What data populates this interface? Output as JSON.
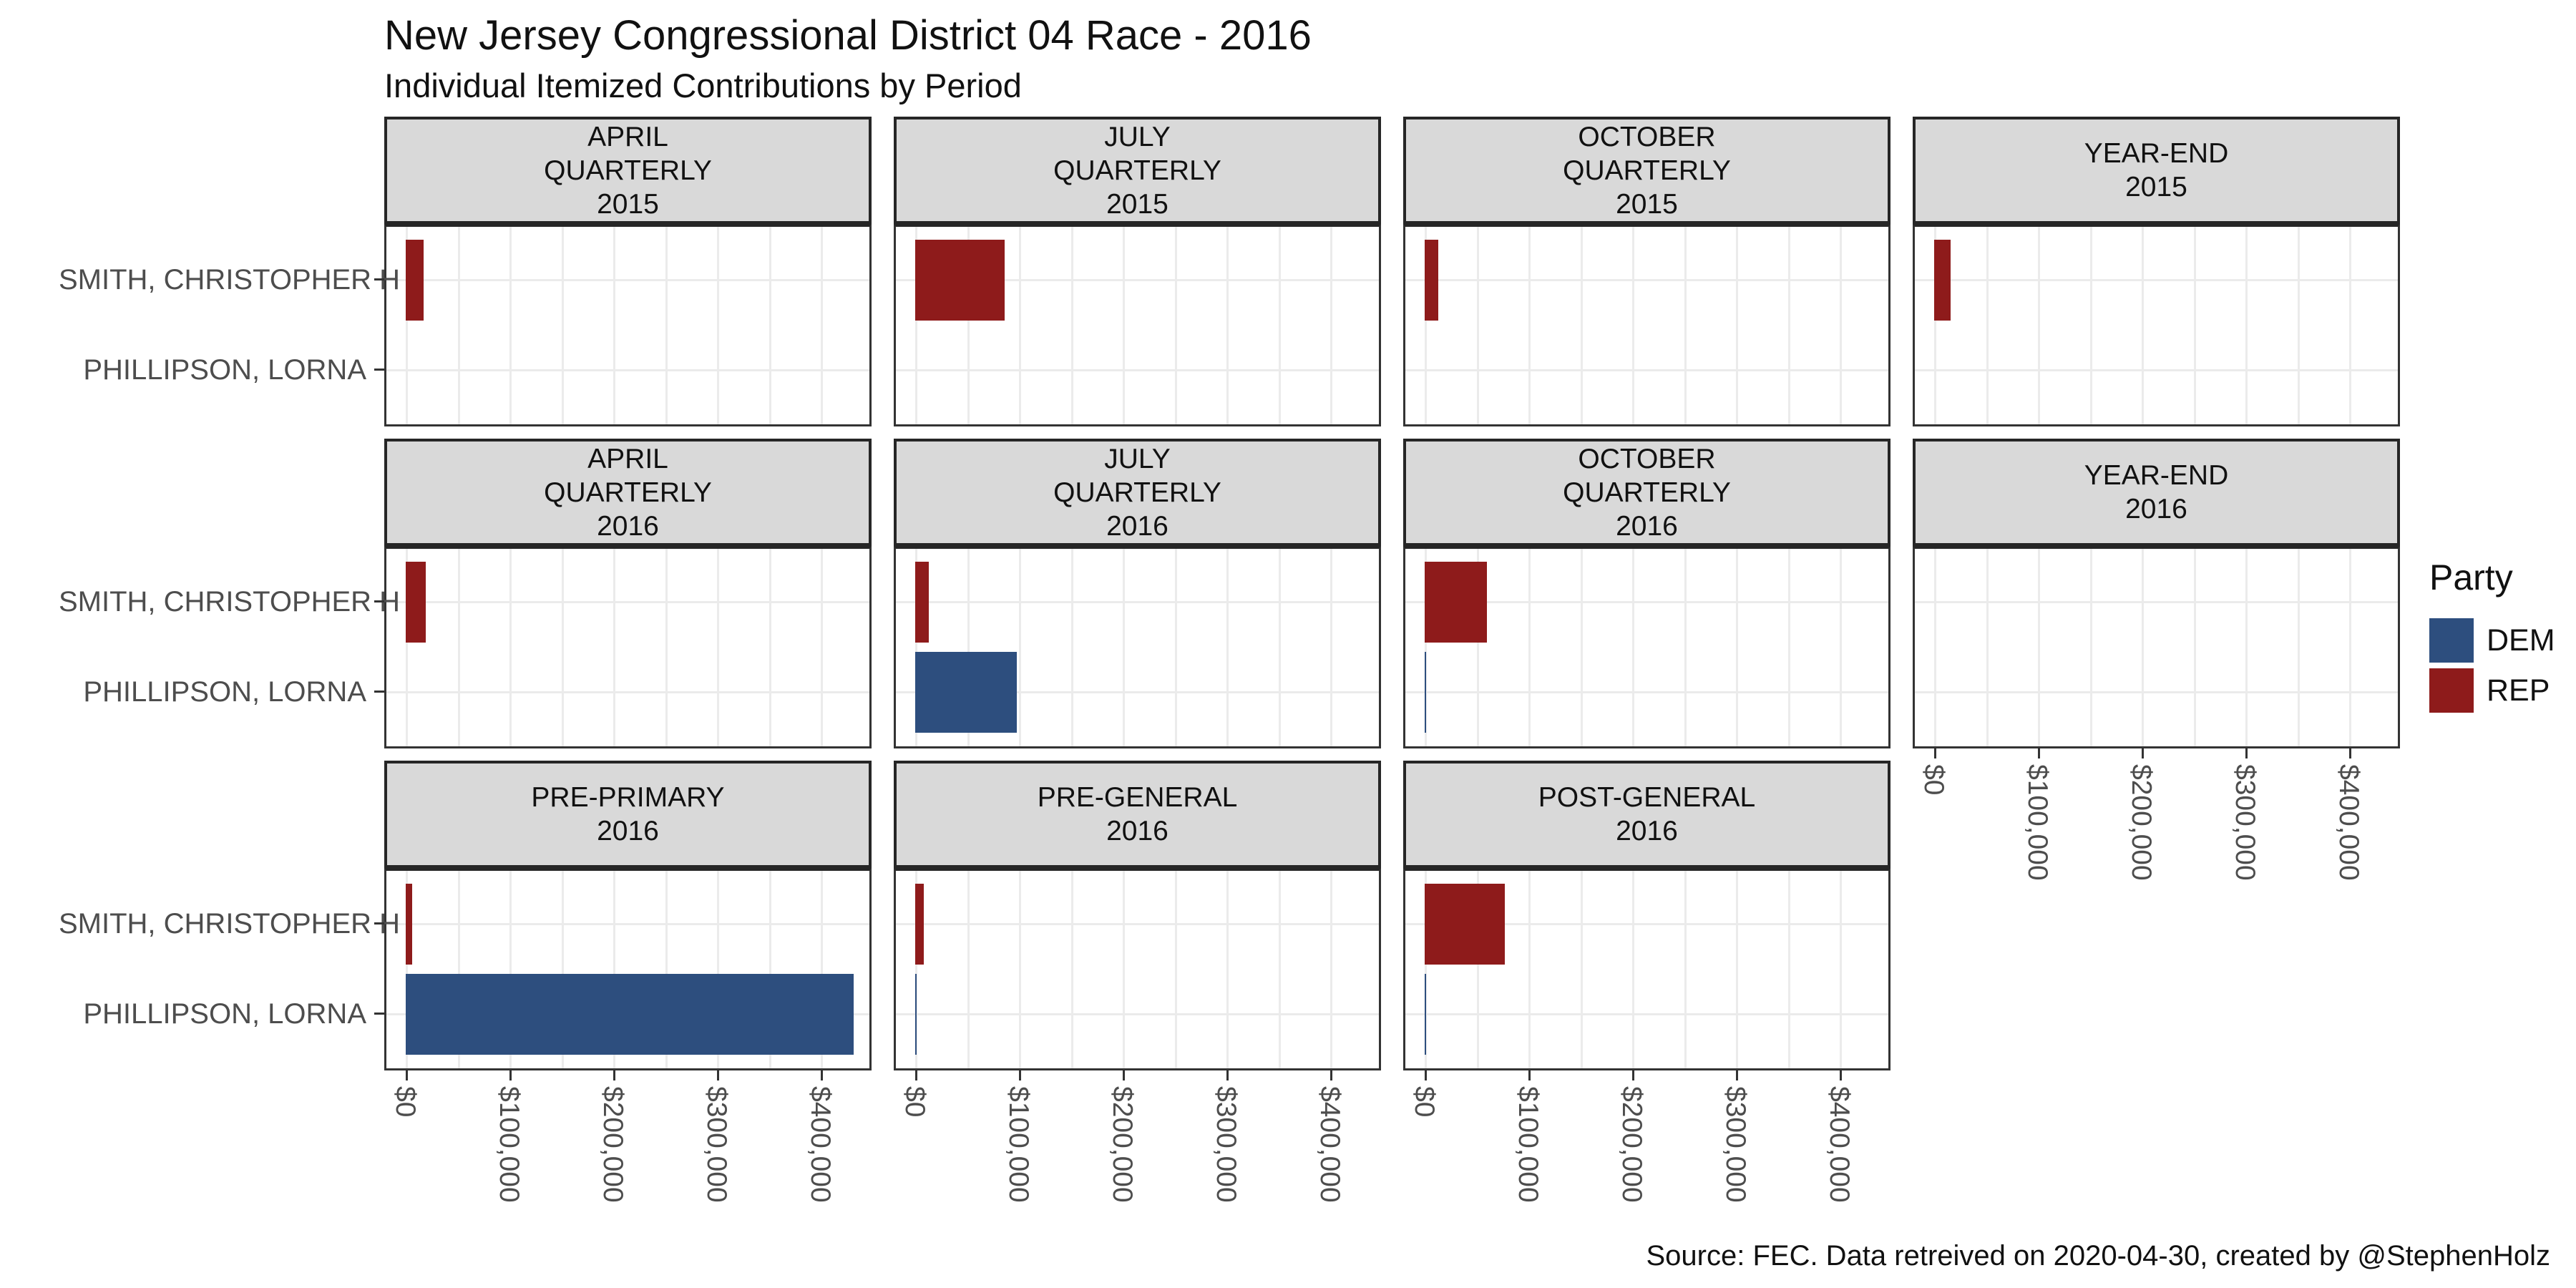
{
  "header": {
    "title": "New Jersey Congressional District 04 Race - 2016",
    "subtitle": "Individual Itemized Contributions by Period"
  },
  "caption": "Source: FEC. Data retreived on 2020-04-30, created by @StephenHolz",
  "chart_data": {
    "type": "bar",
    "orientation": "horizontal",
    "title": "New Jersey Congressional District 04 Race - 2016",
    "subtitle": "Individual Itemized Contributions by Period",
    "caption": "Source: FEC. Data retreived on 2020-04-30, created by @StephenHolz",
    "categories": [
      "SMITH, CHRISTOPHER H",
      "PHILLIPSON, LORNA"
    ],
    "category_parties": {
      "SMITH, CHRISTOPHER H": "REP",
      "PHILLIPSON, LORNA": "DEM"
    },
    "x_tick_labels": [
      "$0",
      "$100,000",
      "$200,000",
      "$300,000",
      "$400,000"
    ],
    "x_tick_values": [
      0,
      100000,
      200000,
      300000,
      400000
    ],
    "x_axis_range": [
      0,
      450000
    ],
    "grid": "light-gray major and minor gridlines on white panels",
    "legend": {
      "title": "Party",
      "position": "right",
      "entries": [
        {
          "label": "DEM",
          "color": "#2d4e7e"
        },
        {
          "label": "REP",
          "color": "#8e1b1b"
        }
      ]
    },
    "facet_grid": {
      "rows": 3,
      "cols": 4
    },
    "facets": [
      {
        "label_lines": [
          "APRIL",
          "QUARTERLY",
          "2015"
        ],
        "row": 0,
        "col": 0,
        "x_axis": false,
        "bars": [
          {
            "candidate": "SMITH, CHRISTOPHER H",
            "party": "REP",
            "value": 17000
          }
        ]
      },
      {
        "label_lines": [
          "JULY",
          "QUARTERLY",
          "2015"
        ],
        "row": 0,
        "col": 1,
        "x_axis": false,
        "bars": [
          {
            "candidate": "SMITH, CHRISTOPHER H",
            "party": "REP",
            "value": 86000
          }
        ]
      },
      {
        "label_lines": [
          "OCTOBER",
          "QUARTERLY",
          "2015"
        ],
        "row": 0,
        "col": 2,
        "x_axis": false,
        "bars": [
          {
            "candidate": "SMITH, CHRISTOPHER H",
            "party": "REP",
            "value": 13000
          }
        ]
      },
      {
        "label_lines": [
          "YEAR-END",
          "2015"
        ],
        "row": 0,
        "col": 3,
        "x_axis": false,
        "bars": [
          {
            "candidate": "SMITH, CHRISTOPHER H",
            "party": "REP",
            "value": 16000
          }
        ]
      },
      {
        "label_lines": [
          "APRIL",
          "QUARTERLY",
          "2016"
        ],
        "row": 1,
        "col": 0,
        "x_axis": false,
        "bars": [
          {
            "candidate": "SMITH, CHRISTOPHER H",
            "party": "REP",
            "value": 19000
          }
        ]
      },
      {
        "label_lines": [
          "JULY",
          "QUARTERLY",
          "2016"
        ],
        "row": 1,
        "col": 1,
        "x_axis": false,
        "bars": [
          {
            "candidate": "SMITH, CHRISTOPHER H",
            "party": "REP",
            "value": 13000
          },
          {
            "candidate": "PHILLIPSON, LORNA",
            "party": "DEM",
            "value": 98000
          }
        ]
      },
      {
        "label_lines": [
          "OCTOBER",
          "QUARTERLY",
          "2016"
        ],
        "row": 1,
        "col": 2,
        "x_axis": false,
        "bars": [
          {
            "candidate": "SMITH, CHRISTOPHER H",
            "party": "REP",
            "value": 60000
          },
          {
            "candidate": "PHILLIPSON, LORNA",
            "party": "DEM",
            "value": 1500
          }
        ]
      },
      {
        "label_lines": [
          "YEAR-END",
          "2016"
        ],
        "row": 1,
        "col": 3,
        "x_axis": true,
        "bars": []
      },
      {
        "label_lines": [
          "PRE-PRIMARY",
          "2016"
        ],
        "row": 2,
        "col": 0,
        "x_axis": true,
        "bars": [
          {
            "candidate": "SMITH, CHRISTOPHER H",
            "party": "REP",
            "value": 6000
          },
          {
            "candidate": "PHILLIPSON, LORNA",
            "party": "DEM",
            "value": 432000
          }
        ]
      },
      {
        "label_lines": [
          "PRE-GENERAL",
          "2016"
        ],
        "row": 2,
        "col": 1,
        "x_axis": true,
        "bars": [
          {
            "candidate": "SMITH, CHRISTOPHER H",
            "party": "REP",
            "value": 8000
          },
          {
            "candidate": "PHILLIPSON, LORNA",
            "party": "DEM",
            "value": 1000
          }
        ]
      },
      {
        "label_lines": [
          "POST-GENERAL",
          "2016"
        ],
        "row": 2,
        "col": 2,
        "x_axis": true,
        "bars": [
          {
            "candidate": "SMITH, CHRISTOPHER H",
            "party": "REP",
            "value": 77000
          },
          {
            "candidate": "PHILLIPSON, LORNA",
            "party": "DEM",
            "value": 1500
          }
        ]
      }
    ],
    "colors": {
      "DEM": "#2d4e7e",
      "REP": "#8e1b1b",
      "strip_fill": "#d9d9d9",
      "panel_border": "#333333",
      "gridline": "#ebebeb",
      "axis_text": "#4d4d4d",
      "tick": "#333333"
    }
  }
}
